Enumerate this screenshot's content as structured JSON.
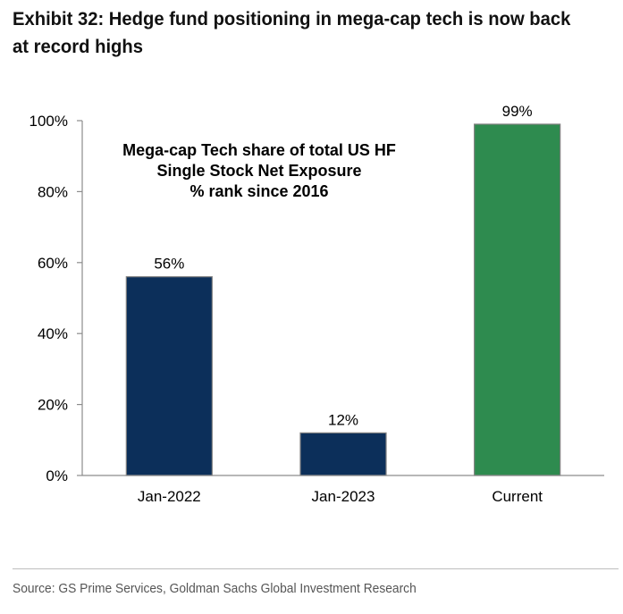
{
  "title": "Exhibit 32: Hedge fund positioning in mega-cap tech is now back at record highs",
  "source": "Source: GS Prime Services, Goldman Sachs Global Investment Research",
  "colors": {
    "navy_bar": "#0c2f5a",
    "green_bar": "#2e8b4f",
    "axis": "#8c8c8c",
    "bar_outline": "#7f7f7f"
  },
  "chart_data": {
    "type": "bar",
    "annotation": [
      "Mega-cap Tech share of total US HF",
      "Single Stock Net Exposure",
      "% rank since 2016"
    ],
    "categories": [
      "Jan-2022",
      "Jan-2023",
      "Current"
    ],
    "values": [
      56,
      12,
      99
    ],
    "value_labels": [
      "56%",
      "12%",
      "99%"
    ],
    "bar_colors": [
      "#0c2f5a",
      "#0c2f5a",
      "#2e8b4f"
    ],
    "y_ticks": [
      0,
      20,
      40,
      60,
      80,
      100
    ],
    "y_tick_labels": [
      "0%",
      "20%",
      "40%",
      "60%",
      "80%",
      "100%"
    ],
    "ylim": [
      0,
      100
    ],
    "grid": false,
    "legend": "none"
  }
}
